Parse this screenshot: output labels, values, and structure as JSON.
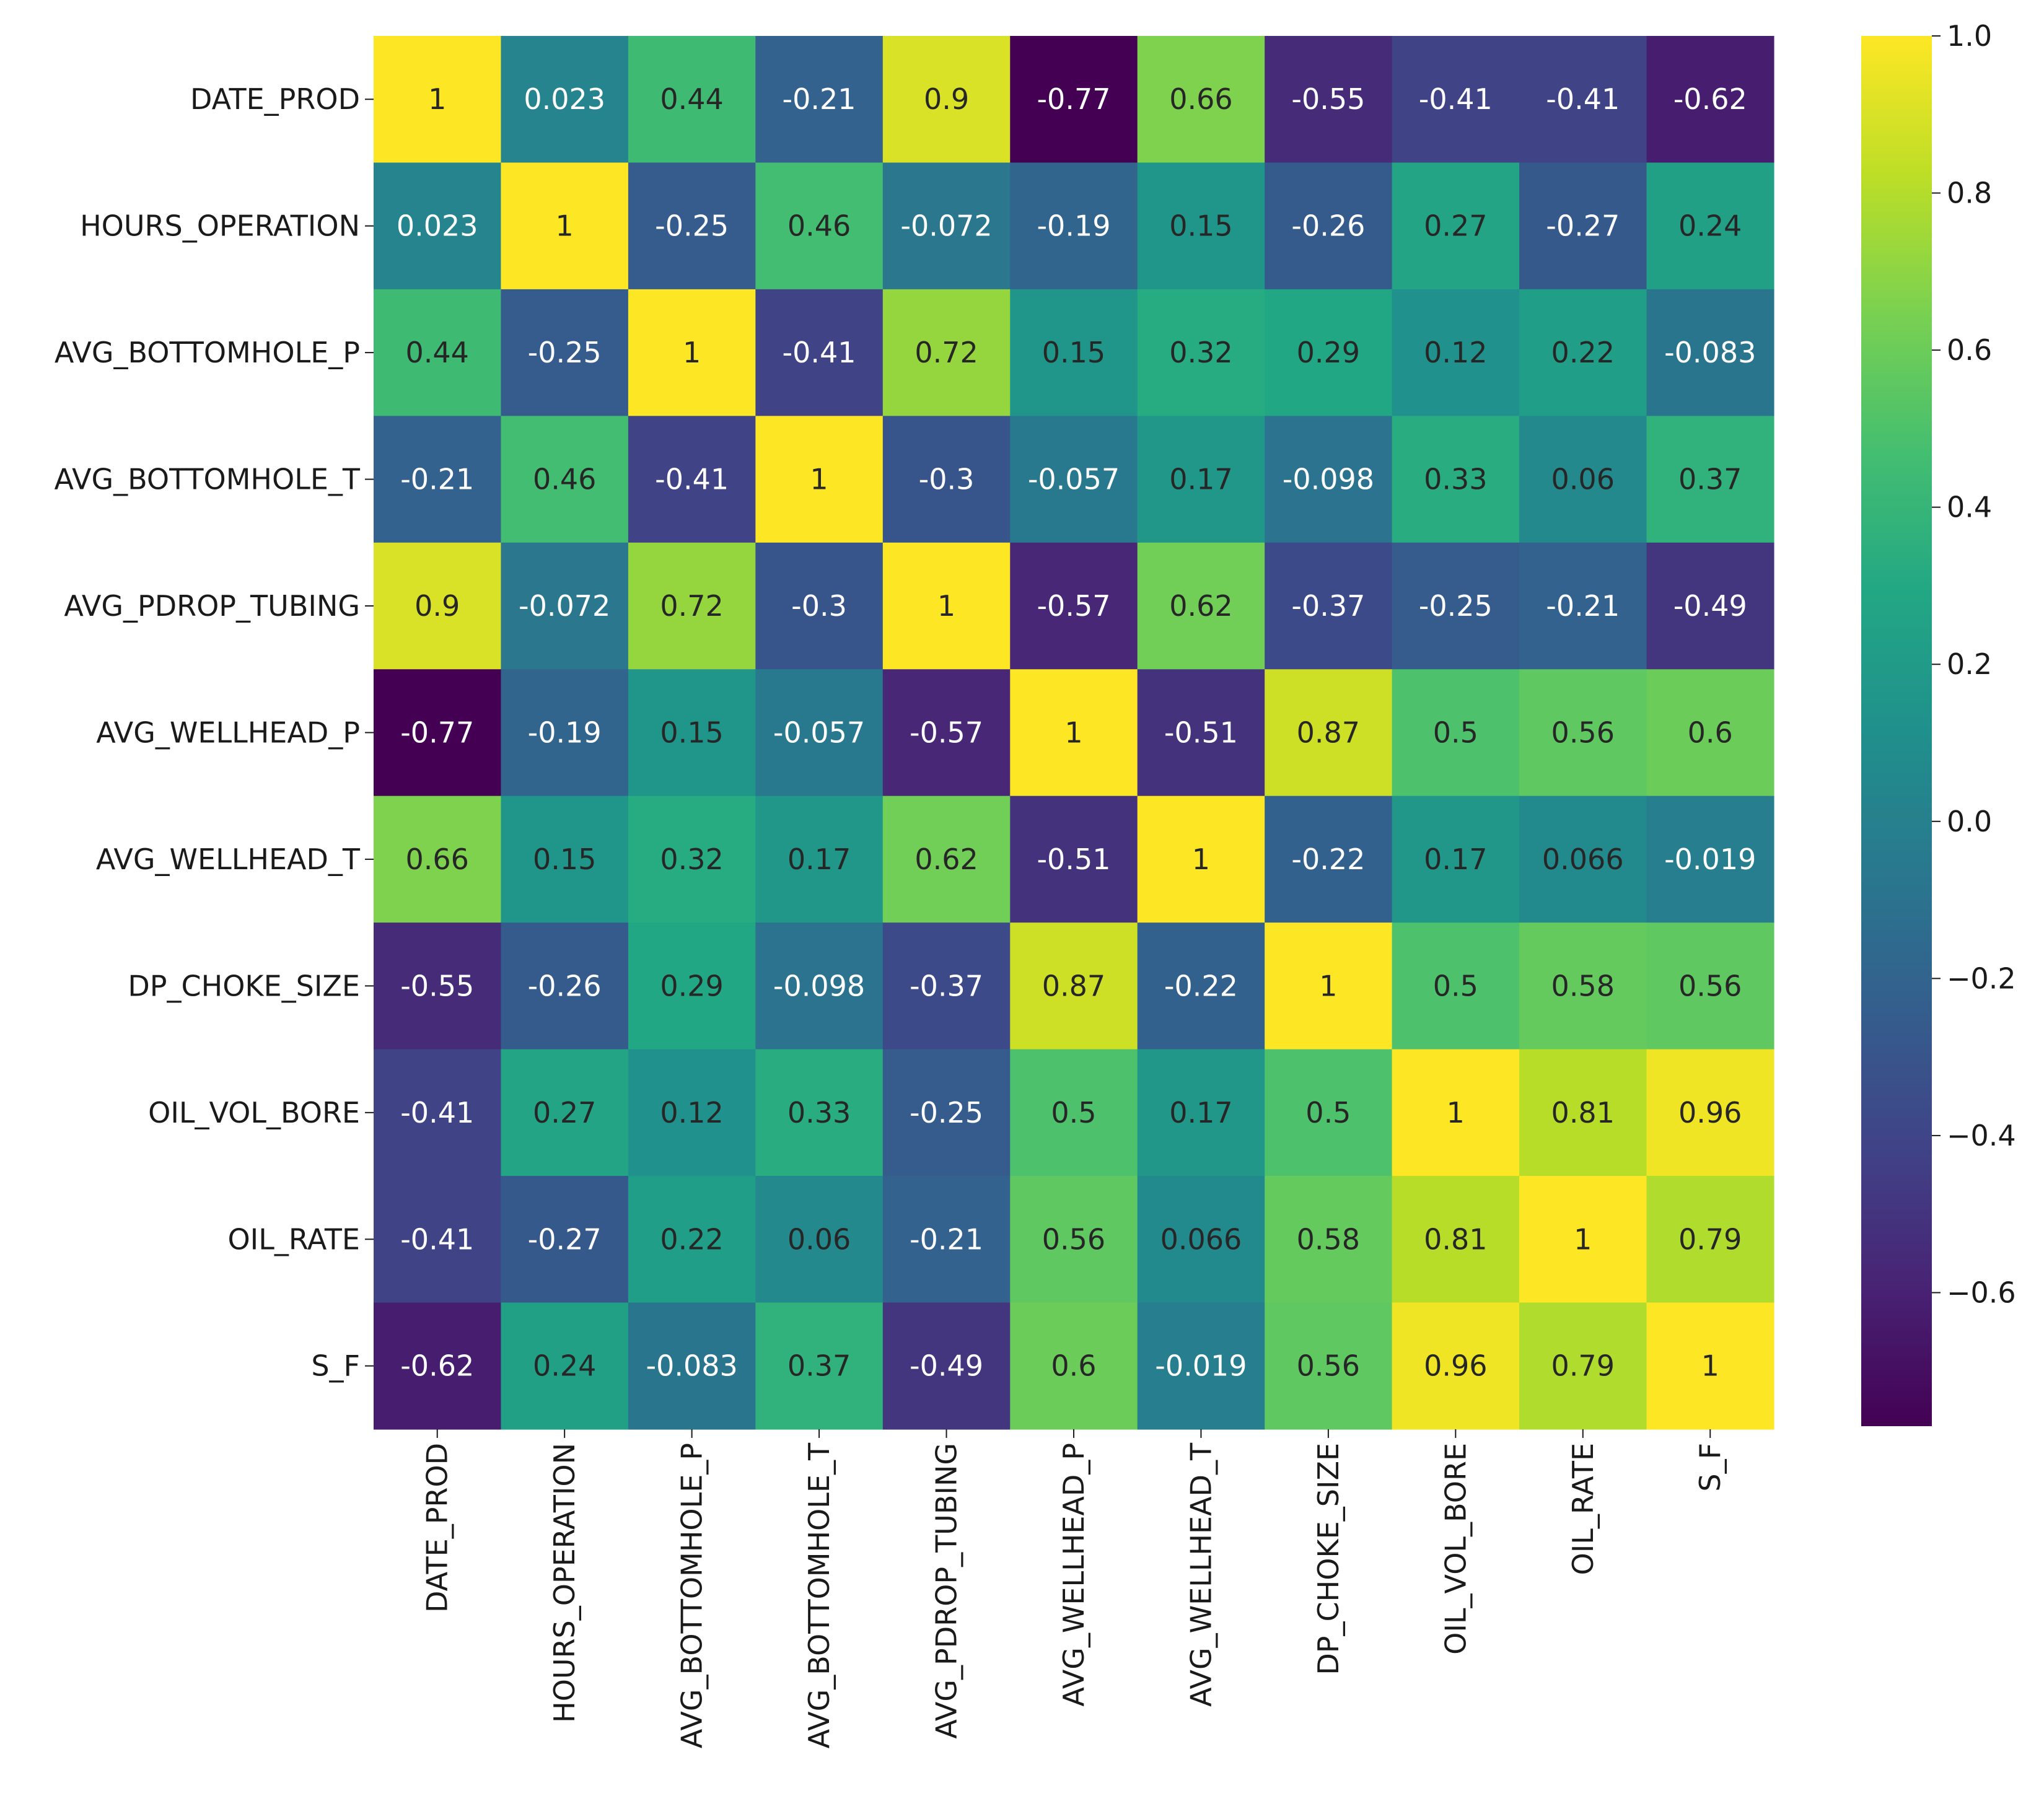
{
  "chart_data": {
    "type": "heatmap",
    "title": "",
    "colormap": "viridis",
    "vmin": -0.77,
    "vmax": 1.0,
    "labels": [
      "DATE_PROD",
      "HOURS_OPERATION",
      "AVG_BOTTOMHOLE_P",
      "AVG_BOTTOMHOLE_T",
      "AVG_PDROP_TUBING",
      "AVG_WELLHEAD_P",
      "AVG_WELLHEAD_T",
      "DP_CHOKE_SIZE",
      "OIL_VOL_BORE",
      "OIL_RATE",
      "S_F"
    ],
    "values": [
      [
        1,
        0.023,
        0.44,
        -0.21,
        0.9,
        -0.77,
        0.66,
        -0.55,
        -0.41,
        -0.41,
        -0.62
      ],
      [
        0.023,
        1,
        -0.25,
        0.46,
        -0.072,
        -0.19,
        0.15,
        -0.26,
        0.27,
        -0.27,
        0.24
      ],
      [
        0.44,
        -0.25,
        1,
        -0.41,
        0.72,
        0.15,
        0.32,
        0.29,
        0.12,
        0.22,
        -0.083
      ],
      [
        -0.21,
        0.46,
        -0.41,
        1,
        -0.3,
        -0.057,
        0.17,
        -0.098,
        0.33,
        0.06,
        0.37
      ],
      [
        0.9,
        -0.072,
        0.72,
        -0.3,
        1,
        -0.57,
        0.62,
        -0.37,
        -0.25,
        -0.21,
        -0.49
      ],
      [
        -0.77,
        -0.19,
        0.15,
        -0.057,
        -0.57,
        1,
        -0.51,
        0.87,
        0.5,
        0.56,
        0.6
      ],
      [
        0.66,
        0.15,
        0.32,
        0.17,
        0.62,
        -0.51,
        1,
        -0.22,
        0.17,
        0.066,
        -0.019
      ],
      [
        -0.55,
        -0.26,
        0.29,
        -0.098,
        -0.37,
        0.87,
        -0.22,
        1,
        0.5,
        0.58,
        0.56
      ],
      [
        -0.41,
        0.27,
        0.12,
        0.33,
        -0.25,
        0.5,
        0.17,
        0.5,
        1,
        0.81,
        0.96
      ],
      [
        -0.41,
        -0.27,
        0.22,
        0.06,
        -0.21,
        0.56,
        0.066,
        0.58,
        0.81,
        1,
        0.79
      ],
      [
        -0.62,
        0.24,
        -0.083,
        0.37,
        -0.49,
        0.6,
        -0.019,
        0.56,
        0.96,
        0.79,
        1
      ]
    ],
    "cell_labels": [
      [
        "1",
        "0.023",
        "0.44",
        "-0.21",
        "0.9",
        "-0.77",
        "0.66",
        "-0.55",
        "-0.41",
        "-0.41",
        "-0.62"
      ],
      [
        "0.023",
        "1",
        "-0.25",
        "0.46",
        "-0.072",
        "-0.19",
        "0.15",
        "-0.26",
        "0.27",
        "-0.27",
        "0.24"
      ],
      [
        "0.44",
        "-0.25",
        "1",
        "-0.41",
        "0.72",
        "0.15",
        "0.32",
        "0.29",
        "0.12",
        "0.22",
        "-0.083"
      ],
      [
        "-0.21",
        "0.46",
        "-0.41",
        "1",
        "-0.3",
        "-0.057",
        "0.17",
        "-0.098",
        "0.33",
        "0.06",
        "0.37"
      ],
      [
        "0.9",
        "-0.072",
        "0.72",
        "-0.3",
        "1",
        "-0.57",
        "0.62",
        "-0.37",
        "-0.25",
        "-0.21",
        "-0.49"
      ],
      [
        "-0.77",
        "-0.19",
        "0.15",
        "-0.057",
        "-0.57",
        "1",
        "-0.51",
        "0.87",
        "0.5",
        "0.56",
        "0.6"
      ],
      [
        "0.66",
        "0.15",
        "0.32",
        "0.17",
        "0.62",
        "-0.51",
        "1",
        "-0.22",
        "0.17",
        "0.066",
        "-0.019"
      ],
      [
        "-0.55",
        "-0.26",
        "0.29",
        "-0.098",
        "-0.37",
        "0.87",
        "-0.22",
        "1",
        "0.5",
        "0.58",
        "0.56"
      ],
      [
        "-0.41",
        "0.27",
        "0.12",
        "0.33",
        "-0.25",
        "0.5",
        "0.17",
        "0.5",
        "1",
        "0.81",
        "0.96"
      ],
      [
        "-0.41",
        "-0.27",
        "0.22",
        "0.06",
        "-0.21",
        "0.56",
        "0.066",
        "0.58",
        "0.81",
        "1",
        "0.79"
      ],
      [
        "-0.62",
        "0.24",
        "-0.083",
        "0.37",
        "-0.49",
        "0.6",
        "-0.019",
        "0.56",
        "0.96",
        "0.79",
        "1"
      ]
    ],
    "colorbar": {
      "ticks": [
        1.0,
        0.8,
        0.6,
        0.4,
        0.2,
        0.0,
        -0.2,
        -0.4,
        -0.6
      ],
      "tick_labels": [
        "1.0",
        "0.8",
        "0.6",
        "0.4",
        "0.2",
        "0.0",
        "−0.2",
        "−0.4",
        "−0.6"
      ]
    }
  }
}
